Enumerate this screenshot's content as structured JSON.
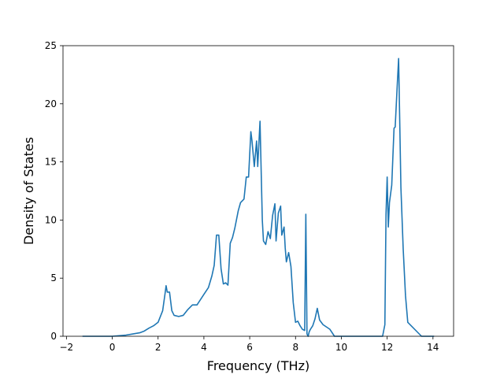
{
  "chart_data": {
    "type": "line",
    "title": "",
    "xlabel": "Frequency (THz)",
    "ylabel": "Density of States",
    "xlim": [
      -2.15,
      14.9
    ],
    "ylim": [
      0,
      25
    ],
    "xticks": [
      -2,
      0,
      2,
      4,
      6,
      8,
      10,
      12,
      14
    ],
    "xtick_labels": [
      "−2",
      "0",
      "2",
      "4",
      "6",
      "8",
      "10",
      "12",
      "14"
    ],
    "yticks": [
      0,
      5,
      10,
      15,
      20,
      25
    ],
    "ytick_labels": [
      "0",
      "5",
      "10",
      "15",
      "20",
      "25"
    ],
    "grid": false,
    "legend": "none",
    "series": [
      {
        "color": "#1f77b4",
        "x": [
          -1.3,
          -0.5,
          0,
          0.3,
          0.6,
          0.9,
          1.2,
          1.4,
          1.6,
          1.8,
          2.0,
          2.2,
          2.3,
          2.35,
          2.4,
          2.5,
          2.6,
          2.7,
          2.9,
          3.1,
          3.3,
          3.5,
          3.7,
          3.8,
          4.0,
          4.2,
          4.35,
          4.45,
          4.55,
          4.65,
          4.75,
          4.85,
          4.95,
          5.05,
          5.15,
          5.25,
          5.35,
          5.5,
          5.6,
          5.75,
          5.85,
          5.95,
          6.05,
          6.1,
          6.2,
          6.3,
          6.35,
          6.45,
          6.55,
          6.6,
          6.7,
          6.8,
          6.9,
          7.0,
          7.1,
          7.15,
          7.25,
          7.35,
          7.4,
          7.5,
          7.55,
          7.6,
          7.7,
          7.8,
          7.9,
          8.0,
          8.1,
          8.2,
          8.3,
          8.4,
          8.45,
          8.5,
          8.55,
          8.6,
          8.65,
          8.75,
          8.85,
          8.95,
          9.05,
          9.2,
          9.5,
          9.7,
          10.0,
          11.0,
          11.8,
          11.9,
          11.95,
          12.0,
          12.05,
          12.1,
          12.2,
          12.3,
          12.35,
          12.45,
          12.5,
          12.6,
          12.7,
          12.8,
          12.9,
          13.5,
          14.05
        ],
        "values": [
          0,
          0,
          0,
          0.05,
          0.1,
          0.2,
          0.3,
          0.45,
          0.7,
          0.9,
          1.2,
          2.2,
          3.6,
          4.35,
          3.8,
          3.8,
          2.2,
          1.8,
          1.7,
          1.8,
          2.3,
          2.7,
          2.7,
          3.0,
          3.6,
          4.2,
          5.2,
          6.1,
          8.7,
          8.7,
          5.8,
          4.5,
          4.6,
          4.4,
          8.0,
          8.5,
          9.3,
          10.8,
          11.5,
          11.8,
          13.7,
          13.7,
          17.6,
          16.8,
          14.6,
          16.8,
          14.6,
          18.5,
          10.0,
          8.2,
          7.9,
          9.0,
          8.4,
          10.4,
          11.4,
          8.2,
          10.6,
          11.2,
          8.7,
          9.4,
          7.6,
          6.4,
          7.2,
          6.0,
          2.9,
          1.2,
          1.3,
          0.9,
          0.6,
          0.5,
          10.5,
          0.2,
          0,
          0.4,
          0.6,
          0.9,
          1.5,
          2.4,
          1.4,
          1.0,
          0.6,
          0,
          0,
          0,
          0,
          1.0,
          10.5,
          13.7,
          9.4,
          11.5,
          13.0,
          17.9,
          18.0,
          22.0,
          23.9,
          12.8,
          7.5,
          3.5,
          1.2,
          0,
          0
        ]
      }
    ]
  }
}
